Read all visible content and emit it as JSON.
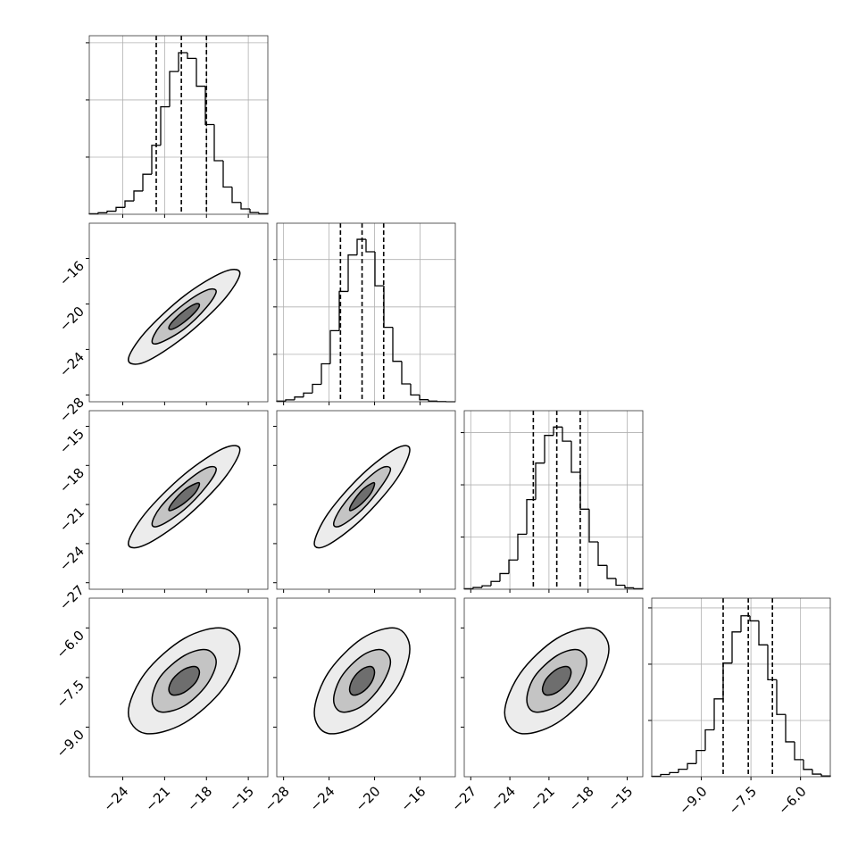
{
  "chart_data": {
    "type": "corner",
    "line_color": "#000000",
    "grid_color": "#b0b0b0",
    "contour_fills": [
      "#ececec",
      "#c4c4c4",
      "#6e6e6e"
    ],
    "parameters": [
      {
        "lim": [
          -26.4,
          -13.6
        ],
        "ticks": [
          {
            "value": -24,
            "label": "−24"
          },
          {
            "value": -21,
            "label": "−21"
          },
          {
            "value": -18,
            "label": "−18"
          },
          {
            "value": -15,
            "label": "−15"
          }
        ],
        "quantiles": [
          -21.6,
          -19.8,
          -18.0
        ],
        "hist": {
          "bins": [
            -26.4,
            -25.76,
            -25.12,
            -24.48,
            -23.84,
            -23.2,
            -22.56,
            -21.92,
            -21.28,
            -20.64,
            -20.0,
            -19.36,
            -18.72,
            -18.08,
            -17.44,
            -16.8,
            -16.16,
            -15.52,
            -14.88,
            -14.24,
            -13.6
          ],
          "counts": [
            3,
            8,
            16,
            36,
            70,
            122,
            210,
            362,
            564,
            749,
            848,
            818,
            672,
            471,
            281,
            143,
            62,
            28,
            9,
            3
          ],
          "ylim": [
            0,
            937
          ],
          "yticks": [
            300,
            600,
            900
          ]
        }
      },
      {
        "lim": [
          -28.6,
          -12.9
        ],
        "ticks": [
          {
            "value": -28,
            "label": "−28"
          },
          {
            "value": -24,
            "label": "−24"
          },
          {
            "value": -20,
            "label": "−20"
          },
          {
            "value": -16,
            "label": "−16"
          }
        ],
        "quantiles": [
          -23.0,
          -21.1,
          -19.2
        ],
        "hist": {
          "bins": [
            -28.6,
            -27.815,
            -27.03,
            -26.245,
            -25.46,
            -24.675,
            -23.89,
            -23.105,
            -22.32,
            -21.535,
            -20.75,
            -19.965,
            -19.18,
            -18.395,
            -17.61,
            -16.825,
            -16.04,
            -15.255,
            -14.47,
            -13.685,
            -12.9
          ],
          "counts": [
            4,
            12,
            30,
            55,
            110,
            240,
            450,
            698,
            929,
            1028,
            949,
            734,
            471,
            256,
            113,
            43,
            13,
            4,
            1,
            0
          ],
          "ylim": [
            0,
            1130
          ],
          "yticks": [
            300,
            600,
            900
          ]
        }
      },
      {
        "lim": [
          -27.5,
          -13.8
        ],
        "ticks": [
          {
            "value": -27,
            "label": "−27"
          },
          {
            "value": -24,
            "label": "−24"
          },
          {
            "value": -21,
            "label": "−21"
          },
          {
            "value": -18,
            "label": "−18"
          },
          {
            "value": -15,
            "label": "−15"
          }
        ],
        "quantiles": [
          -22.2,
          -20.4,
          -18.6
        ],
        "hist": {
          "bins": [
            -27.5,
            -26.815,
            -26.13,
            -25.445,
            -24.76,
            -24.075,
            -23.39,
            -22.705,
            -22.02,
            -21.335,
            -20.65,
            -19.965,
            -19.28,
            -18.595,
            -17.91,
            -17.225,
            -16.54,
            -15.855,
            -15.17,
            -14.485,
            -13.8
          ],
          "counts": [
            3,
            10,
            20,
            45,
            90,
            168,
            316,
            515,
            725,
            884,
            932,
            851,
            672,
            460,
            272,
            137,
            62,
            23,
            8,
            3
          ],
          "ylim": [
            0,
            1026
          ],
          "yticks": [
            300,
            600,
            900
          ]
        }
      },
      {
        "lim": [
          -10.5,
          -5.1
        ],
        "ticks": [
          {
            "value": -9.0,
            "label": "−9.0"
          },
          {
            "value": -7.5,
            "label": "−7.5"
          },
          {
            "value": -6.0,
            "label": "−6.0"
          }
        ],
        "quantiles": [
          -8.34,
          -7.58,
          -6.85
        ],
        "hist": {
          "bins": [
            -10.5,
            -10.23,
            -9.96,
            -9.69,
            -9.42,
            -9.15,
            -8.88,
            -8.61,
            -8.34,
            -8.07,
            -7.8,
            -7.53,
            -7.26,
            -6.99,
            -6.72,
            -6.45,
            -6.18,
            -5.91,
            -5.64,
            -5.37,
            -5.1
          ],
          "counts": [
            2,
            12,
            22,
            40,
            70,
            140,
            250,
            415,
            606,
            772,
            858,
            831,
            703,
            517,
            332,
            186,
            91,
            39,
            14,
            4
          ],
          "ylim": [
            0,
            952
          ],
          "yticks": [
            300,
            600,
            900
          ]
        }
      }
    ],
    "pairs": [
      [
        {
          "contours": [
            {
              "x": [
                -18.5,
                -18.8,
                -19.6,
                -20.4,
                -20.7,
                -20.4,
                -19.6,
                -18.8
              ],
              "y": [
                -20.1,
                -20.0,
                -20.6,
                -21.5,
                -22.1,
                -22.2,
                -21.6,
                -20.7
              ]
            },
            {
              "x": [
                -17.3,
                -18.0,
                -19.6,
                -21.3,
                -21.9,
                -21.3,
                -19.6,
                -18.0
              ],
              "y": [
                -18.9,
                -18.8,
                -20.0,
                -21.9,
                -23.3,
                -23.4,
                -22.2,
                -20.3
              ]
            },
            {
              "x": [
                -15.6,
                -16.8,
                -19.6,
                -22.4,
                -23.6,
                -22.4,
                -19.6,
                -16.8
              ],
              "y": [
                -17.3,
                -17.2,
                -19.3,
                -22.5,
                -24.9,
                -25.1,
                -22.9,
                -19.7
              ]
            }
          ]
        }
      ],
      [
        {
          "contours": [
            {
              "x": [
                -18.5,
                -18.8,
                -19.6,
                -20.4,
                -20.7,
                -20.4,
                -19.6,
                -18.8
              ],
              "y": [
                -19.4,
                -19.4,
                -19.9,
                -20.8,
                -21.4,
                -21.4,
                -20.9,
                -20.1
              ]
            },
            {
              "x": [
                -17.3,
                -18.0,
                -19.6,
                -21.3,
                -21.9,
                -21.3,
                -19.6,
                -18.0
              ],
              "y": [
                -18.3,
                -18.2,
                -19.4,
                -21.2,
                -22.5,
                -22.6,
                -21.4,
                -19.6
              ]
            },
            {
              "x": [
                -15.6,
                -16.8,
                -19.6,
                -22.4,
                -23.6,
                -22.4,
                -19.6,
                -16.8
              ],
              "y": [
                -16.8,
                -16.7,
                -18.7,
                -21.7,
                -24.0,
                -24.1,
                -22.1,
                -19.1
              ]
            }
          ]
        },
        {
          "contours": [
            {
              "x": [
                -20.0,
                -20.3,
                -21.1,
                -21.9,
                -22.2,
                -21.9,
                -21.1,
                -20.3
              ],
              "y": [
                -19.4,
                -19.4,
                -19.9,
                -20.8,
                -21.4,
                -21.4,
                -20.9,
                -20.1
              ]
            },
            {
              "x": [
                -18.6,
                -19.4,
                -21.1,
                -22.9,
                -23.6,
                -22.9,
                -21.1,
                -19.4
              ],
              "y": [
                -18.3,
                -18.2,
                -19.4,
                -21.2,
                -22.5,
                -22.6,
                -21.4,
                -19.6
              ]
            },
            {
              "x": [
                -16.9,
                -18.1,
                -21.1,
                -24.1,
                -25.3,
                -24.1,
                -21.1,
                -18.1
              ],
              "y": [
                -16.8,
                -16.7,
                -18.7,
                -21.7,
                -24.0,
                -24.1,
                -22.1,
                -19.1
              ]
            }
          ]
        }
      ],
      [
        {
          "contours": [
            {
              "x": [
                -18.5,
                -18.8,
                -19.6,
                -20.4,
                -20.7,
                -20.4,
                -19.6,
                -18.8
              ],
              "y": [
                -7.34,
                -7.17,
                -7.25,
                -7.54,
                -7.86,
                -8.03,
                -7.95,
                -7.66
              ]
            },
            {
              "x": [
                -17.3,
                -18.0,
                -19.6,
                -21.3,
                -21.9,
                -21.3,
                -19.6,
                -18.0
              ],
              "y": [
                -7.03,
                -6.66,
                -6.84,
                -7.47,
                -8.17,
                -8.54,
                -8.36,
                -7.73
              ]
            },
            {
              "x": [
                -15.6,
                -16.8,
                -19.6,
                -22.4,
                -23.6,
                -22.4,
                -19.6,
                -16.8
              ],
              "y": [
                -6.64,
                -6.01,
                -6.32,
                -7.37,
                -8.56,
                -9.19,
                -8.88,
                -7.83
              ]
            }
          ]
        },
        {
          "contours": [
            {
              "x": [
                -20.0,
                -20.3,
                -21.1,
                -21.9,
                -22.2,
                -21.9,
                -21.1,
                -20.3
              ],
              "y": [
                -7.34,
                -7.17,
                -7.25,
                -7.54,
                -7.86,
                -8.03,
                -7.95,
                -7.66
              ]
            },
            {
              "x": [
                -18.6,
                -19.4,
                -21.1,
                -22.9,
                -23.6,
                -22.9,
                -21.1,
                -19.4
              ],
              "y": [
                -7.03,
                -6.66,
                -6.84,
                -7.47,
                -8.17,
                -8.54,
                -8.36,
                -7.73
              ]
            },
            {
              "x": [
                -16.9,
                -18.1,
                -21.1,
                -24.1,
                -25.3,
                -24.1,
                -21.1,
                -18.1
              ],
              "y": [
                -6.64,
                -6.01,
                -6.32,
                -7.37,
                -8.56,
                -9.19,
                -8.88,
                -7.83
              ]
            }
          ]
        },
        {
          "contours": [
            {
              "x": [
                -19.3,
                -19.6,
                -20.4,
                -21.2,
                -21.5,
                -21.2,
                -20.4,
                -19.6
              ],
              "y": [
                -7.34,
                -7.17,
                -7.25,
                -7.54,
                -7.86,
                -8.03,
                -7.95,
                -7.66
              ]
            },
            {
              "x": [
                -18.1,
                -18.8,
                -20.4,
                -22.1,
                -22.7,
                -22.1,
                -20.4,
                -18.8
              ],
              "y": [
                -7.03,
                -6.66,
                -6.84,
                -7.47,
                -8.17,
                -8.54,
                -8.36,
                -7.73
              ]
            },
            {
              "x": [
                -16.4,
                -17.6,
                -20.4,
                -23.2,
                -24.4,
                -23.2,
                -20.4,
                -17.6
              ],
              "y": [
                -6.64,
                -6.01,
                -6.32,
                -7.37,
                -8.56,
                -9.19,
                -8.88,
                -7.83
              ]
            }
          ]
        }
      ]
    ]
  }
}
